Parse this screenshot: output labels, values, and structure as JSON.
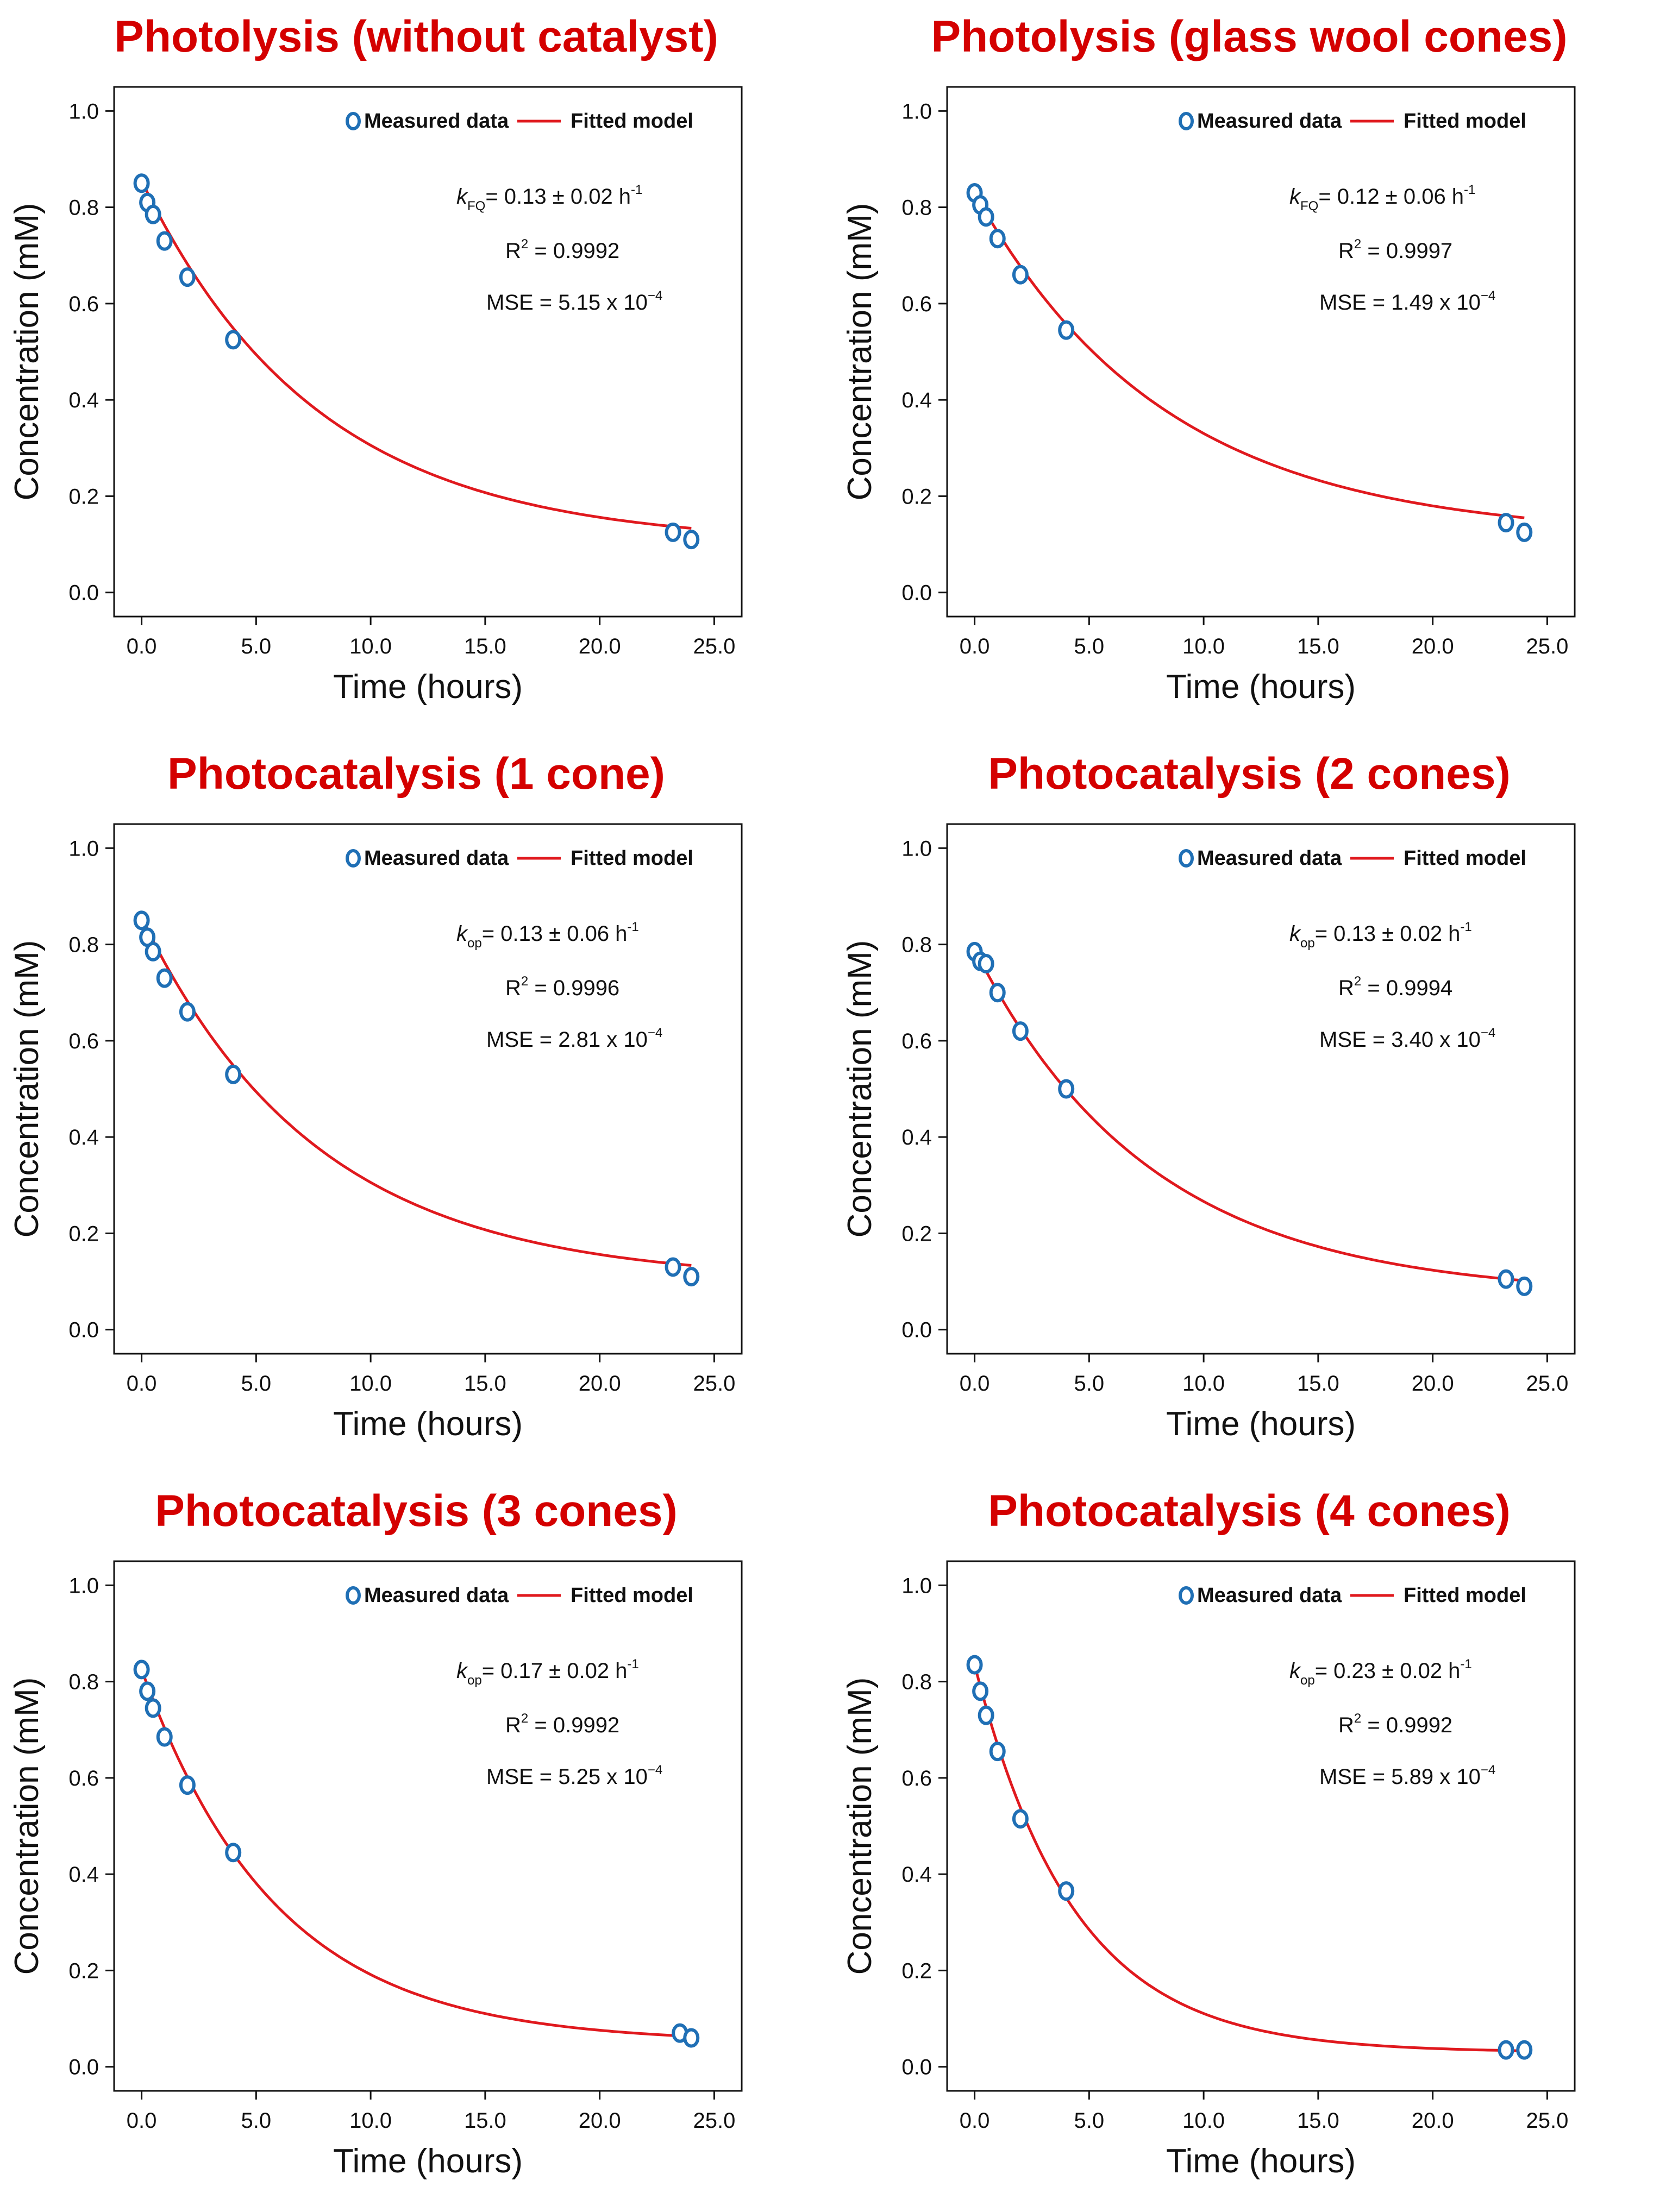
{
  "colors": {
    "title": "#d40000",
    "marker": "#1f6fb5",
    "fit": "#e0191e",
    "axis": "#111111"
  },
  "legend": {
    "measured": "Measured data",
    "fitted": "Fitted model"
  },
  "chart_data": [
    {
      "type": "scatter",
      "title": "Photolysis (without catalyst)",
      "xlabel": "Time (hours)",
      "ylabel": "Concentration (mM)",
      "xlim": [
        -1.2,
        26.2
      ],
      "ylim": [
        -0.05,
        1.05
      ],
      "xticks": [
        0,
        5,
        10,
        15,
        20,
        25
      ],
      "xtick_labels": [
        "0.0",
        "5.0",
        "10.0",
        "15.0",
        "20.0",
        "25.0"
      ],
      "yticks": [
        0,
        0.2,
        0.4,
        0.6,
        0.8,
        1.0
      ],
      "ytick_labels": [
        "0.0",
        "0.2",
        "0.4",
        "0.6",
        "0.8",
        "1.0"
      ],
      "legend_position": "top-right",
      "series": [
        {
          "name": "Measured data",
          "x": [
            0,
            0.25,
            0.5,
            1,
            2,
            4,
            23.2,
            24
          ],
          "y": [
            0.85,
            0.81,
            0.785,
            0.73,
            0.655,
            0.525,
            0.125,
            0.11
          ]
        },
        {
          "name": "Fitted model",
          "model": "exponential decay",
          "c0": 0.855,
          "c_inf": 0.1,
          "k": 0.13,
          "x_range": [
            0,
            24
          ]
        }
      ],
      "annotations": {
        "k_symbol": "k",
        "k_sub": "FQ",
        "k_text": "= 0.13 ± 0.02 h",
        "k_exp": "-1",
        "r2_prefix": "R",
        "r2_exp": "2",
        "r2_value": " = 0.9992",
        "mse_text": "MSE = 5.15 x 10",
        "mse_exp": "−4"
      }
    },
    {
      "type": "scatter",
      "title": "Photolysis (glass wool cones)",
      "xlabel": "Time (hours)",
      "ylabel": "Concentration (mM)",
      "xlim": [
        -1.2,
        26.2
      ],
      "ylim": [
        -0.05,
        1.05
      ],
      "xticks": [
        0,
        5,
        10,
        15,
        20,
        25
      ],
      "xtick_labels": [
        "0.0",
        "5.0",
        "10.0",
        "15.0",
        "20.0",
        "25.0"
      ],
      "yticks": [
        0,
        0.2,
        0.4,
        0.6,
        0.8,
        1.0
      ],
      "ytick_labels": [
        "0.0",
        "0.2",
        "0.4",
        "0.6",
        "0.8",
        "1.0"
      ],
      "legend_position": "top-right",
      "series": [
        {
          "name": "Measured data",
          "x": [
            0,
            0.25,
            0.5,
            1,
            2,
            4,
            23.2,
            24
          ],
          "y": [
            0.83,
            0.805,
            0.78,
            0.735,
            0.66,
            0.545,
            0.145,
            0.125
          ]
        },
        {
          "name": "Fitted model",
          "model": "exponential decay",
          "c0": 0.83,
          "c_inf": 0.115,
          "k": 0.12,
          "x_range": [
            0,
            24
          ]
        }
      ],
      "annotations": {
        "k_symbol": "k",
        "k_sub": "FQ",
        "k_text": "= 0.12 ± 0.06 h",
        "k_exp": "-1",
        "r2_prefix": "R",
        "r2_exp": "2",
        "r2_value": " = 0.9997",
        "mse_text": "MSE = 1.49 x 10",
        "mse_exp": "−4"
      }
    },
    {
      "type": "scatter",
      "title": "Photocatalysis (1 cone)",
      "xlabel": "Time (hours)",
      "ylabel": "Concentration (mM)",
      "xlim": [
        -1.2,
        26.2
      ],
      "ylim": [
        -0.05,
        1.05
      ],
      "xticks": [
        0,
        5,
        10,
        15,
        20,
        25
      ],
      "xtick_labels": [
        "0.0",
        "5.0",
        "10.0",
        "15.0",
        "20.0",
        "25.0"
      ],
      "yticks": [
        0,
        0.2,
        0.4,
        0.6,
        0.8,
        1.0
      ],
      "ytick_labels": [
        "0.0",
        "0.2",
        "0.4",
        "0.6",
        "0.8",
        "1.0"
      ],
      "legend_position": "top-right",
      "series": [
        {
          "name": "Measured data",
          "x": [
            0,
            0.25,
            0.5,
            1,
            2,
            4,
            23.2,
            24
          ],
          "y": [
            0.85,
            0.815,
            0.785,
            0.73,
            0.66,
            0.53,
            0.13,
            0.11
          ]
        },
        {
          "name": "Fitted model",
          "model": "exponential decay",
          "c0": 0.855,
          "c_inf": 0.1,
          "k": 0.13,
          "x_range": [
            0,
            24
          ]
        }
      ],
      "annotations": {
        "k_symbol": "k",
        "k_sub": "op",
        "k_text": "= 0.13 ± 0.06 h",
        "k_exp": "-1",
        "r2_prefix": "R",
        "r2_exp": "2",
        "r2_value": " = 0.9996",
        "mse_text": "MSE = 2.81 x 10",
        "mse_exp": "−4"
      }
    },
    {
      "type": "scatter",
      "title": "Photocatalysis (2 cones)",
      "xlabel": "Time (hours)",
      "ylabel": "Concentration (mM)",
      "xlim": [
        -1.2,
        26.2
      ],
      "ylim": [
        -0.05,
        1.05
      ],
      "xticks": [
        0,
        5,
        10,
        15,
        20,
        25
      ],
      "xtick_labels": [
        "0.0",
        "5.0",
        "10.0",
        "15.0",
        "20.0",
        "25.0"
      ],
      "yticks": [
        0,
        0.2,
        0.4,
        0.6,
        0.8,
        1.0
      ],
      "ytick_labels": [
        "0.0",
        "0.2",
        "0.4",
        "0.6",
        "0.8",
        "1.0"
      ],
      "legend_position": "top-right",
      "series": [
        {
          "name": "Measured data",
          "x": [
            0,
            0.25,
            0.5,
            1,
            2,
            4,
            23.2,
            24
          ],
          "y": [
            0.785,
            0.765,
            0.76,
            0.7,
            0.62,
            0.5,
            0.105,
            0.09
          ]
        },
        {
          "name": "Fitted model",
          "model": "exponential decay",
          "c0": 0.79,
          "c_inf": 0.07,
          "k": 0.13,
          "x_range": [
            0,
            24
          ]
        }
      ],
      "annotations": {
        "k_symbol": "k",
        "k_sub": "op",
        "k_text": "= 0.13 ± 0.02 h",
        "k_exp": "-1",
        "r2_prefix": "R",
        "r2_exp": "2",
        "r2_value": " = 0.9994",
        "mse_text": "MSE = 3.40 x 10",
        "mse_exp": "−4"
      }
    },
    {
      "type": "scatter",
      "title": "Photocatalysis (3 cones)",
      "xlabel": "Time (hours)",
      "ylabel": "Concentration (mM)",
      "xlim": [
        -1.2,
        26.2
      ],
      "ylim": [
        -0.05,
        1.05
      ],
      "xticks": [
        0,
        5,
        10,
        15,
        20,
        25
      ],
      "xtick_labels": [
        "0.0",
        "5.0",
        "10.0",
        "15.0",
        "20.0",
        "25.0"
      ],
      "yticks": [
        0,
        0.2,
        0.4,
        0.6,
        0.8,
        1.0
      ],
      "ytick_labels": [
        "0.0",
        "0.2",
        "0.4",
        "0.6",
        "0.8",
        "1.0"
      ],
      "legend_position": "top-right",
      "series": [
        {
          "name": "Measured data",
          "x": [
            0,
            0.25,
            0.5,
            1,
            2,
            4,
            23.5,
            24
          ],
          "y": [
            0.825,
            0.78,
            0.745,
            0.685,
            0.585,
            0.445,
            0.07,
            0.06
          ]
        },
        {
          "name": "Fitted model",
          "model": "exponential decay",
          "c0": 0.825,
          "c_inf": 0.05,
          "k": 0.17,
          "x_range": [
            0,
            24
          ]
        }
      ],
      "annotations": {
        "k_symbol": "k",
        "k_sub": "op",
        "k_text": "= 0.17 ± 0.02 h",
        "k_exp": "-1",
        "r2_prefix": "R",
        "r2_exp": "2",
        "r2_value": " = 0.9992",
        "mse_text": "MSE = 5.25 x 10",
        "mse_exp": "−4"
      }
    },
    {
      "type": "scatter",
      "title": "Photocatalysis (4 cones)",
      "xlabel": "Time (hours)",
      "ylabel": "Concentration (mM)",
      "xlim": [
        -1.2,
        26.2
      ],
      "ylim": [
        -0.05,
        1.05
      ],
      "xticks": [
        0,
        5,
        10,
        15,
        20,
        25
      ],
      "xtick_labels": [
        "0.0",
        "5.0",
        "10.0",
        "15.0",
        "20.0",
        "25.0"
      ],
      "yticks": [
        0,
        0.2,
        0.4,
        0.6,
        0.8,
        1.0
      ],
      "ytick_labels": [
        "0.0",
        "0.2",
        "0.4",
        "0.6",
        "0.8",
        "1.0"
      ],
      "legend_position": "top-right",
      "series": [
        {
          "name": "Measured data",
          "x": [
            0,
            0.25,
            0.5,
            1,
            2,
            4,
            23.2,
            24
          ],
          "y": [
            0.835,
            0.78,
            0.73,
            0.655,
            0.515,
            0.365,
            0.035,
            0.035
          ]
        },
        {
          "name": "Fitted model",
          "model": "exponential decay",
          "c0": 0.835,
          "c_inf": 0.03,
          "k": 0.23,
          "x_range": [
            0,
            24
          ]
        }
      ],
      "annotations": {
        "k_symbol": "k",
        "k_sub": "op",
        "k_text": "= 0.23 ± 0.02 h",
        "k_exp": "-1",
        "r2_prefix": "R",
        "r2_exp": "2",
        "r2_value": " = 0.9992",
        "mse_text": "MSE = 5.89 x 10",
        "mse_exp": "−4"
      }
    }
  ]
}
